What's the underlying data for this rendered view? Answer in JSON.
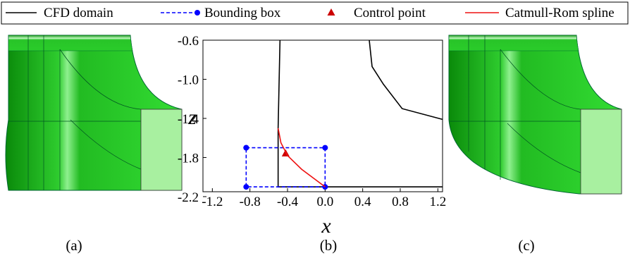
{
  "chart_data": {
    "type": "line",
    "xlabel": "x",
    "ylabel": "z",
    "xlim": [
      -1.3,
      1.25
    ],
    "ylim": [
      -2.15,
      -0.6
    ],
    "xticks": [
      -1.2,
      -0.8,
      -0.4,
      {
        "value": 0,
        "label": "0.0"
      },
      0.4,
      0.8,
      1.2
    ],
    "yticks": [
      -0.6,
      {
        "value": -1,
        "label": "-1.0"
      },
      -1.4,
      -1.8,
      -2.2
    ],
    "series": [
      {
        "name": "CFD domain",
        "color": "#000000",
        "linestyle": "solid",
        "x": [
          -0.48,
          -0.5,
          -0.5,
          1.25,
          null,
          0.47,
          0.5,
          0.62,
          0.82,
          1.25
        ],
        "y": [
          -0.6,
          -1.5,
          -2.1,
          -2.1,
          null,
          -0.6,
          -0.87,
          -1.05,
          -1.3,
          -1.41
        ]
      },
      {
        "name": "Bounding box",
        "color": "#0000ff",
        "linestyle": "dashed",
        "marker": "circle",
        "x": [
          -0.84,
          0,
          0,
          -0.84,
          -0.84
        ],
        "y": [
          -1.7,
          -1.7,
          -2.1,
          -2.1,
          -1.7
        ]
      },
      {
        "name": "Control point",
        "color": "#cc0000",
        "linestyle": "none",
        "marker": "triangle",
        "x": [
          -0.42
        ],
        "y": [
          -1.76
        ]
      },
      {
        "name": "Catmull-Rom spline",
        "color": "#ee1111",
        "linestyle": "solid",
        "x": [
          -0.5,
          -0.47,
          -0.4,
          -0.25,
          0
        ],
        "y": [
          -1.5,
          -1.65,
          -1.78,
          -1.92,
          -2.1
        ]
      }
    ]
  },
  "captions": [
    "(a)",
    "(b)",
    "(c)"
  ]
}
